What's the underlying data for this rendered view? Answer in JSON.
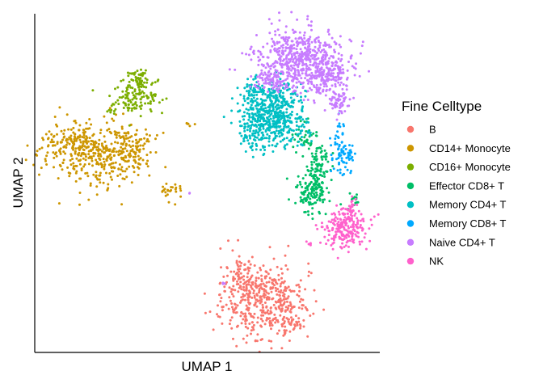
{
  "chart_data": {
    "type": "scatter",
    "title": "",
    "xlabel": "UMAP 1",
    "ylabel": "UMAP 2",
    "xlim": [
      0,
      100
    ],
    "ylim": [
      0,
      100
    ],
    "grid": false,
    "axis_ticks": false,
    "legend": {
      "title": "Fine Celltype",
      "placement": "right",
      "entries": [
        {
          "name": "B",
          "color": "#F8766D"
        },
        {
          "name": "CD14+ Monocyte",
          "color": "#CD9600"
        },
        {
          "name": "CD16+ Monocyte",
          "color": "#7CAE00"
        },
        {
          "name": "Effector CD8+ T",
          "color": "#00BE67"
        },
        {
          "name": "Memory CD4+ T",
          "color": "#00BFC4"
        },
        {
          "name": "Memory CD8+ T",
          "color": "#00A9FF"
        },
        {
          "name": "Naive CD4+ T",
          "color": "#C77CFF"
        },
        {
          "name": "NK",
          "color": "#FF61CC"
        }
      ]
    },
    "series": [
      {
        "name": "B",
        "color": "#F8766D",
        "clusters": [
          {
            "cx": 66.0,
            "cy": 14.0,
            "sx": 6.5,
            "sy": 5.5,
            "n": 420
          },
          {
            "cx": 60.0,
            "cy": 22.0,
            "sx": 2.5,
            "sy": 4.0,
            "n": 60
          },
          {
            "cx": 72.0,
            "cy": 7.0,
            "sx": 4.0,
            "sy": 2.0,
            "n": 60
          }
        ]
      },
      {
        "name": "CD14+ Monocyte",
        "color": "#CD9600",
        "clusters": [
          {
            "cx": 17.0,
            "cy": 59.0,
            "sx": 7.0,
            "sy": 5.0,
            "n": 360
          },
          {
            "cx": 8.0,
            "cy": 62.0,
            "sx": 4.0,
            "sy": 2.5,
            "n": 90
          },
          {
            "cx": 28.0,
            "cy": 60.0,
            "sx": 3.0,
            "sy": 3.5,
            "n": 70
          },
          {
            "cx": 39.0,
            "cy": 48.0,
            "sx": 2.0,
            "sy": 1.5,
            "n": 25
          },
          {
            "cx": 44.0,
            "cy": 68.0,
            "sx": 0.8,
            "sy": 0.4,
            "n": 6
          }
        ]
      },
      {
        "name": "CD16+ Monocyte",
        "color": "#7CAE00",
        "clusters": [
          {
            "cx": 28.0,
            "cy": 76.0,
            "sx": 3.5,
            "sy": 2.5,
            "n": 120
          },
          {
            "cx": 29.5,
            "cy": 81.5,
            "sx": 1.5,
            "sy": 1.8,
            "n": 50
          },
          {
            "cx": 21.0,
            "cy": 72.5,
            "sx": 1.0,
            "sy": 0.8,
            "n": 6
          }
        ]
      },
      {
        "name": "Effector CD8+ T",
        "color": "#00BE67",
        "clusters": [
          {
            "cx": 81.5,
            "cy": 48.0,
            "sx": 2.5,
            "sy": 3.5,
            "n": 160
          },
          {
            "cx": 83.5,
            "cy": 56.0,
            "sx": 2.0,
            "sy": 2.5,
            "n": 60
          },
          {
            "cx": 80.0,
            "cy": 64.0,
            "sx": 2.0,
            "sy": 3.0,
            "n": 40
          },
          {
            "cx": 94.0,
            "cy": 45.0,
            "sx": 1.0,
            "sy": 1.5,
            "n": 14
          }
        ]
      },
      {
        "name": "Memory CD4+ T",
        "color": "#00BFC4",
        "clusters": [
          {
            "cx": 69.5,
            "cy": 71.0,
            "sx": 4.5,
            "sy": 5.0,
            "n": 520
          },
          {
            "cx": 63.0,
            "cy": 65.0,
            "sx": 2.0,
            "sy": 2.5,
            "n": 50
          },
          {
            "cx": 64.0,
            "cy": 78.0,
            "sx": 2.0,
            "sy": 2.0,
            "n": 40
          },
          {
            "cx": 77.0,
            "cy": 66.0,
            "sx": 2.0,
            "sy": 2.5,
            "n": 30
          }
        ]
      },
      {
        "name": "Memory CD8+ T",
        "color": "#00A9FF",
        "clusters": [
          {
            "cx": 91.0,
            "cy": 58.0,
            "sx": 1.8,
            "sy": 2.2,
            "n": 70
          },
          {
            "cx": 90.0,
            "cy": 66.0,
            "sx": 1.0,
            "sy": 2.0,
            "n": 18
          }
        ]
      },
      {
        "name": "Naive CD4+ T",
        "color": "#C77CFF",
        "clusters": [
          {
            "cx": 78.5,
            "cy": 88.0,
            "sx": 6.5,
            "sy": 4.5,
            "n": 600
          },
          {
            "cx": 86.0,
            "cy": 82.0,
            "sx": 3.0,
            "sy": 3.0,
            "n": 120
          },
          {
            "cx": 89.5,
            "cy": 75.0,
            "sx": 1.5,
            "sy": 2.5,
            "n": 60
          },
          {
            "cx": 69.0,
            "cy": 81.0,
            "sx": 3.0,
            "sy": 1.5,
            "n": 60
          },
          {
            "cx": 55.0,
            "cy": 19.0,
            "sx": 0.4,
            "sy": 0.4,
            "n": 3
          },
          {
            "cx": 44.5,
            "cy": 47.5,
            "sx": 0.3,
            "sy": 0.3,
            "n": 2
          }
        ]
      },
      {
        "name": "NK",
        "color": "#FF61CC",
        "clusters": [
          {
            "cx": 91.5,
            "cy": 36.0,
            "sx": 3.2,
            "sy": 3.0,
            "n": 220
          },
          {
            "cx": 94.0,
            "cy": 42.5,
            "sx": 1.0,
            "sy": 1.5,
            "n": 18
          },
          {
            "cx": 80.5,
            "cy": 31.5,
            "sx": 0.6,
            "sy": 0.4,
            "n": 5
          }
        ]
      }
    ]
  }
}
